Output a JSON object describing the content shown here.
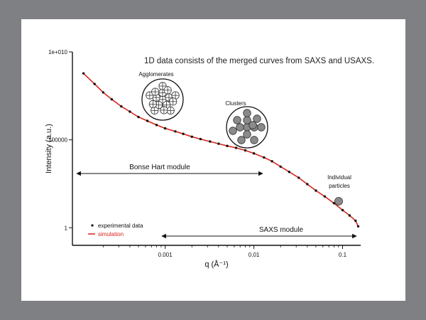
{
  "chart_data": {
    "type": "scatter",
    "title": "1D data consists of the merged curves from SAXS and USAXS.",
    "xlabel": "q (Å⁻¹)",
    "ylabel": "Intensity (a.u.)",
    "x_scale": "log",
    "y_scale": "log",
    "xlim": [
      9e-05,
      0.16
    ],
    "ylim": [
      0.1,
      10000000000
    ],
    "x_ticks": [
      {
        "value": 0.001,
        "label": "0.001"
      },
      {
        "value": 0.01,
        "label": "0.01"
      },
      {
        "value": 0.1,
        "label": "0.1"
      }
    ],
    "y_ticks": [
      {
        "value": 1,
        "label": "1"
      },
      {
        "value": 100000,
        "label": "100000"
      },
      {
        "value": 10000000000,
        "label": "1e+010"
      }
    ],
    "legend": {
      "position": "bottom-left",
      "entries": [
        {
          "label": "experimental data",
          "color": "#111111",
          "marker": "dot"
        },
        {
          "label": "simulation",
          "color": "#d9241c",
          "marker": "line"
        }
      ]
    },
    "series": [
      {
        "name": "experimental data",
        "color": "#111111",
        "x": [
          0.00012,
          0.00016,
          0.0002,
          0.00025,
          0.00032,
          0.0004,
          0.0005,
          0.00063,
          0.0008,
          0.001,
          0.0013,
          0.0016,
          0.002,
          0.0025,
          0.0032,
          0.004,
          0.005,
          0.0063,
          0.008,
          0.01,
          0.013,
          0.016,
          0.02,
          0.025,
          0.032,
          0.04,
          0.05,
          0.063,
          0.08,
          0.1,
          0.12,
          0.14,
          0.15
        ],
        "y": [
          600000000,
          150000000,
          50000000,
          20000000,
          8000000,
          4000000,
          2000000,
          1200000,
          700000,
          450000,
          300000,
          220000,
          150000,
          110000,
          80000,
          60000,
          45000,
          35000,
          25000,
          17000,
          10000,
          6000,
          3000,
          1500,
          700,
          300,
          130,
          60,
          25,
          10,
          5,
          2.5,
          1.2
        ]
      },
      {
        "name": "simulation",
        "color": "#d9241c",
        "x": [
          0.00012,
          0.00016,
          0.0002,
          0.00025,
          0.00032,
          0.0004,
          0.0005,
          0.00063,
          0.0008,
          0.001,
          0.0013,
          0.0016,
          0.002,
          0.0025,
          0.0032,
          0.004,
          0.005,
          0.0063,
          0.008,
          0.01,
          0.013,
          0.016,
          0.02,
          0.025,
          0.032,
          0.04,
          0.05,
          0.063,
          0.08,
          0.1,
          0.12,
          0.14,
          0.15
        ],
        "y": [
          600000000,
          150000000,
          50000000,
          20000000,
          8000000,
          4000000,
          2000000,
          1200000,
          700000,
          450000,
          300000,
          220000,
          150000,
          110000,
          80000,
          60000,
          45000,
          35000,
          25000,
          17000,
          10000,
          6000,
          3000,
          1500,
          700,
          300,
          130,
          60,
          25,
          10,
          5,
          2.5,
          1.2
        ]
      }
    ],
    "annotations": [
      {
        "id": "agglomerates",
        "label": "Agglomerates"
      },
      {
        "id": "clusters",
        "label": "Clusters"
      },
      {
        "id": "individual-particles",
        "label": "Individual particles",
        "lines": [
          "Individual",
          "particles"
        ]
      },
      {
        "id": "bonse-hart",
        "label": "Bonse Hart module",
        "q_range": [
          0.0001,
          0.015
        ]
      },
      {
        "id": "saxs",
        "label": "SAXS module",
        "q_range": [
          0.001,
          0.15
        ]
      }
    ]
  }
}
